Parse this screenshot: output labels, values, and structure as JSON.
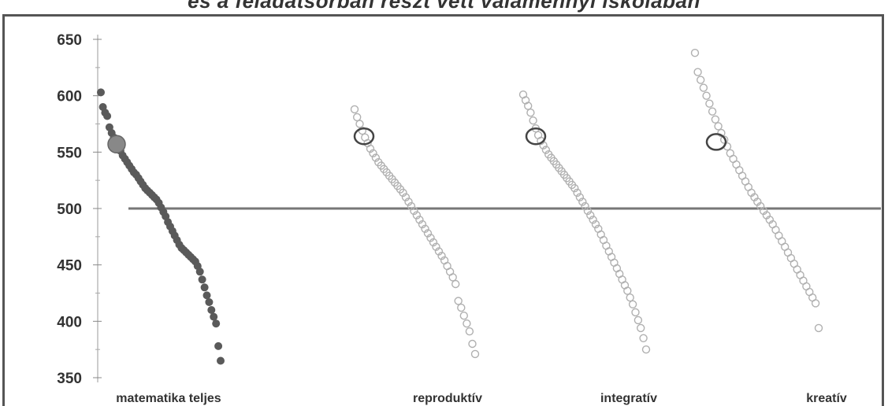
{
  "header": {
    "title_fragment": "és a feladatsorban részt vett valamennyi iskolában"
  },
  "chart_data": {
    "type": "scatter",
    "title": "",
    "xlabel": "",
    "ylabel": "",
    "ylim": [
      350,
      650
    ],
    "yticks": [
      350,
      400,
      450,
      500,
      550,
      600,
      650
    ],
    "categories": [
      "matematika teljes",
      "reproduktív",
      "integratív",
      "kreatív"
    ],
    "reference_line": 500,
    "grid": false,
    "legend": "none",
    "colors": {
      "matematika_teljes": "#5a5a5a",
      "subscales": "#b0b0b0",
      "highlight_ring": "#444444",
      "reference_line": "#777777"
    },
    "series": [
      {
        "category": "matematika teljes",
        "filled": true,
        "values": [
          603,
          590,
          585,
          582,
          572,
          567,
          563,
          560,
          555,
          551,
          547,
          544,
          541,
          538,
          535,
          532,
          530,
          527,
          524,
          521,
          518,
          516,
          514,
          512,
          510,
          508,
          505,
          501,
          497,
          493,
          488,
          484,
          480,
          476,
          472,
          468,
          465,
          463,
          461,
          459,
          457,
          455,
          453,
          449,
          444,
          437,
          430,
          423,
          417,
          410,
          404,
          398,
          378,
          365
        ],
        "highlight": 557
      },
      {
        "category": "reproduktív",
        "filled": false,
        "values": [
          588,
          581,
          575,
          569,
          563,
          558,
          553,
          549,
          545,
          541,
          538,
          535,
          532,
          529,
          526,
          523,
          520,
          517,
          514,
          510,
          506,
          502,
          498,
          494,
          490,
          486,
          482,
          478,
          474,
          470,
          466,
          462,
          458,
          454,
          449,
          444,
          439,
          433,
          418,
          412,
          405,
          398,
          391,
          380,
          371
        ],
        "highlight": 564
      },
      {
        "category": "integratív",
        "filled": false,
        "values": [
          601,
          596,
          591,
          585,
          578,
          571,
          565,
          560,
          556,
          552,
          548,
          545,
          542,
          539,
          536,
          533,
          530,
          527,
          524,
          521,
          518,
          514,
          510,
          506,
          502,
          498,
          494,
          490,
          486,
          482,
          477,
          472,
          467,
          462,
          457,
          452,
          447,
          442,
          437,
          432,
          427,
          421,
          415,
          408,
          401,
          394,
          385,
          375
        ],
        "highlight": 564
      },
      {
        "category": "kreatív",
        "filled": false,
        "values": [
          638,
          621,
          614,
          607,
          600,
          593,
          586,
          579,
          573,
          567,
          561,
          555,
          549,
          544,
          539,
          534,
          529,
          524,
          519,
          514,
          510,
          506,
          502,
          498,
          494,
          490,
          486,
          481,
          476,
          471,
          466,
          461,
          456,
          451,
          446,
          441,
          436,
          431,
          426,
          421,
          416,
          394
        ],
        "highlight": 559
      }
    ]
  }
}
